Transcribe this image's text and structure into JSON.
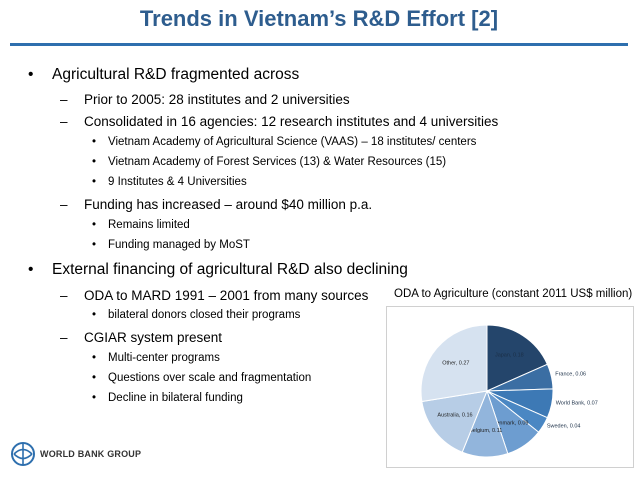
{
  "slide": {
    "title": "Trends in Vietnam’s R&D Effort [2]",
    "bullets": [
      {
        "level": 1,
        "marker": "•",
        "text": "Agricultural R&D fragmented across"
      },
      {
        "level": 2,
        "marker": "–",
        "text": "Prior to 2005: 28 institutes and 2 universities"
      },
      {
        "level": 2,
        "marker": "–",
        "text": "Consolidated in 16 agencies: 12 research institutes and 4 universities"
      },
      {
        "level": 3,
        "marker": "•",
        "text": "Vietnam Academy of Agricultural Science (VAAS) – 18 institutes/ centers"
      },
      {
        "level": 3,
        "marker": "•",
        "text": "Vietnam Academy of Forest Services (13) & Water Resources (15)"
      },
      {
        "level": 3,
        "marker": "•",
        "text": "9 Institutes & 4 Universities"
      },
      {
        "level": 2,
        "marker": "–",
        "text": "Funding has increased – around $40 million p.a."
      },
      {
        "level": 3,
        "marker": "•",
        "text": "Remains limited"
      },
      {
        "level": 3,
        "marker": "•",
        "text": "Funding managed by MoST"
      },
      {
        "level": 1,
        "marker": "•",
        "text": "External financing of agricultural R&D also declining"
      },
      {
        "level": 2,
        "marker": "–",
        "text": "ODA to MARD 1991 – 2001 from many sources"
      },
      {
        "level": 3,
        "marker": "•",
        "text": "bilateral donors closed their programs"
      },
      {
        "level": 2,
        "marker": "–",
        "text": "CGIAR system present"
      },
      {
        "level": 3,
        "marker": "•",
        "text": "Multi-center programs"
      },
      {
        "level": 3,
        "marker": "•",
        "text": "Questions over scale and fragmentation"
      },
      {
        "level": 3,
        "marker": "•",
        "text": "Decline in bilateral funding"
      }
    ],
    "logo_text": "WORLD BANK GROUP"
  },
  "chart_data": {
    "type": "pie",
    "title": "ODA to Agriculture (constant 2011 US$ million)",
    "slices": [
      {
        "label": "Japan",
        "value": 0.18,
        "text": "Japan, 0.18",
        "color": "#24456b"
      },
      {
        "label": "France",
        "value": 0.06,
        "text": "France, 0.06",
        "color": "#3b6ea3"
      },
      {
        "label": "World Bank",
        "value": 0.07,
        "text": "World Bank, 0.07",
        "color": "#3d79b5"
      },
      {
        "label": "Sweden",
        "value": 0.04,
        "text": "Sweden, 0.04",
        "color": "#4a87c3"
      },
      {
        "label": "Denmark",
        "value": 0.09,
        "text": "Denmark, 0.09",
        "color": "#6d9dd0"
      },
      {
        "label": "Belgium",
        "value": 0.11,
        "text": "Belgium, 0.11",
        "color": "#92b5dc"
      },
      {
        "label": "Australia",
        "value": 0.16,
        "text": "Australia, 0.16",
        "color": "#b7cde6"
      },
      {
        "label": "Other",
        "value": 0.27,
        "text": "Other, 0.27",
        "color": "#d6e2f0"
      }
    ]
  }
}
